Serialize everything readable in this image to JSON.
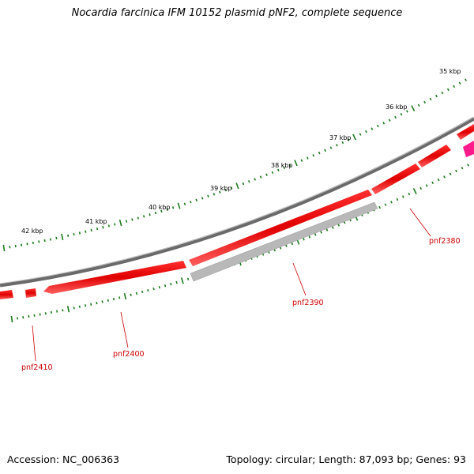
{
  "title": "Nocardia farcinica IFM 10152 plasmid pNF2, complete sequence",
  "footer": {
    "accession": "Accession: NC_006363",
    "summary": "Topology: circular; Length: 87,093 bp; Genes: 93"
  },
  "colors": {
    "backbone": "#808080",
    "forward_gene": "#ff0000",
    "reverse_gene_grey": "#b8b8b8",
    "other_gene": "#ff1a8c",
    "tick": "#1a7a1a",
    "label": "#cc0000"
  },
  "kbp_labels": [
    "35 kbp",
    "36 kbp",
    "37 kbp",
    "38 kbp",
    "39 kbp",
    "40 kbp",
    "41 kbp",
    "42 kbp"
  ],
  "kbp_values": [
    35,
    36,
    37,
    38,
    39,
    40,
    41,
    42
  ],
  "genes": [
    {
      "id": "pnf2380",
      "label": "pnf2380"
    },
    {
      "id": "pnf2390",
      "label": "pnf2390"
    },
    {
      "id": "pnf2400",
      "label": "pnf2400"
    },
    {
      "id": "pnf2410",
      "label": "pnf2410"
    }
  ]
}
